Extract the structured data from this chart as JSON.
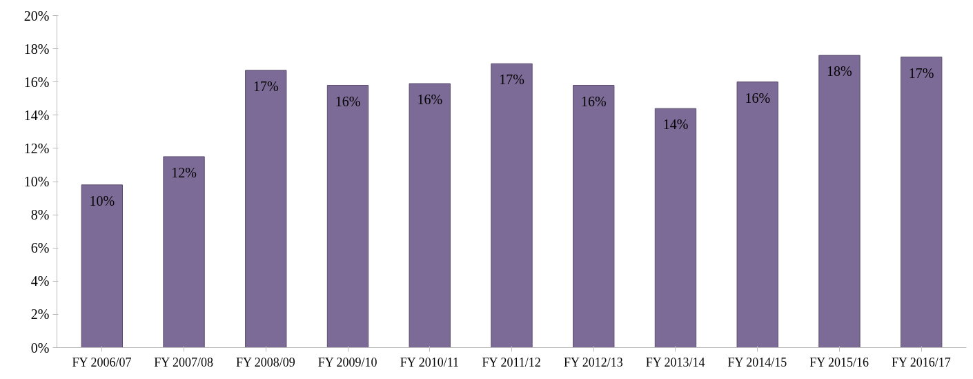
{
  "chart_data": {
    "type": "bar",
    "categories": [
      "FY 2006/07",
      "FY 2007/08",
      "FY 2008/09",
      "FY 2009/10",
      "FY 2010/11",
      "FY 2011/12",
      "FY 2012/13",
      "FY 2013/14",
      "FY 2014/15",
      "FY 2015/16",
      "FY 2016/17"
    ],
    "values": [
      9.8,
      11.5,
      16.7,
      15.8,
      15.9,
      17.1,
      15.8,
      14.4,
      16.0,
      17.6,
      17.5
    ],
    "value_labels": [
      "10%",
      "12%",
      "17%",
      "16%",
      "16%",
      "17%",
      "16%",
      "14%",
      "16%",
      "18%",
      "17%"
    ],
    "color": "#7d6b97",
    "ylim": [
      0,
      20
    ],
    "yticks": [
      {
        "value": 0,
        "label": "0%"
      },
      {
        "value": 2,
        "label": "2%"
      },
      {
        "value": 4,
        "label": "4%"
      },
      {
        "value": 6,
        "label": "6%"
      },
      {
        "value": 8,
        "label": "8%"
      },
      {
        "value": 10,
        "label": "10%"
      },
      {
        "value": 12,
        "label": "12%"
      },
      {
        "value": 14,
        "label": "14%"
      },
      {
        "value": 16,
        "label": "16%"
      },
      {
        "value": 18,
        "label": "18%"
      },
      {
        "value": 20,
        "label": "20%"
      }
    ],
    "grid": false
  }
}
